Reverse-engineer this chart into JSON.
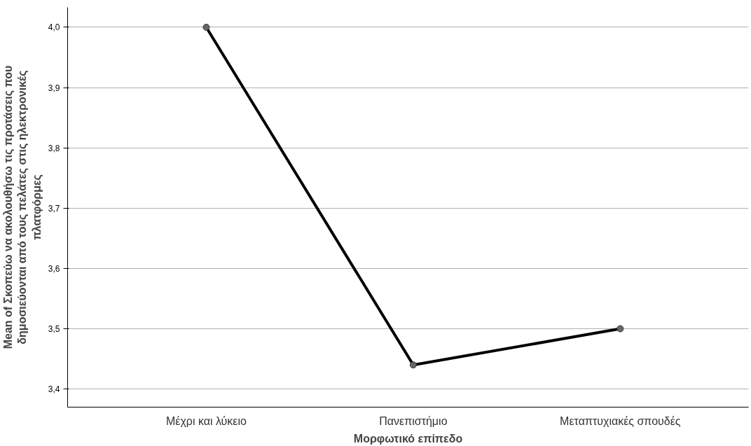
{
  "chart_data": {
    "type": "line",
    "xlabel": "Μορφωτικό επίπεδο",
    "ylabel": "Mean of Σκοπεύω να ακολουθήσω τις προτάσεις που δημοσιεύονται από τους πελάτες στις ηλεκτρονικές πλατφόρμες",
    "categories": [
      "Μέχρι και λύκειο",
      "Πανεπιστήμιο",
      "Μεταπτυχιακές σπουδές"
    ],
    "series": [
      {
        "color": "#000000",
        "values": [
          4.0,
          3.44,
          3.5
        ]
      }
    ],
    "ylim": [
      3.37,
      4.033
    ],
    "yticks": [
      {
        "value": 3.4,
        "label": "3,4"
      },
      {
        "value": 3.5,
        "label": "3,5"
      },
      {
        "value": 3.6,
        "label": "3,6"
      },
      {
        "value": 3.7,
        "label": "3,7"
      },
      {
        "value": 3.8,
        "label": "3,8"
      },
      {
        "value": 3.9,
        "label": "3,9"
      },
      {
        "value": 4.0,
        "label": "4,0"
      }
    ],
    "grid": "y",
    "marker": "circle",
    "line_style": "solid"
  }
}
